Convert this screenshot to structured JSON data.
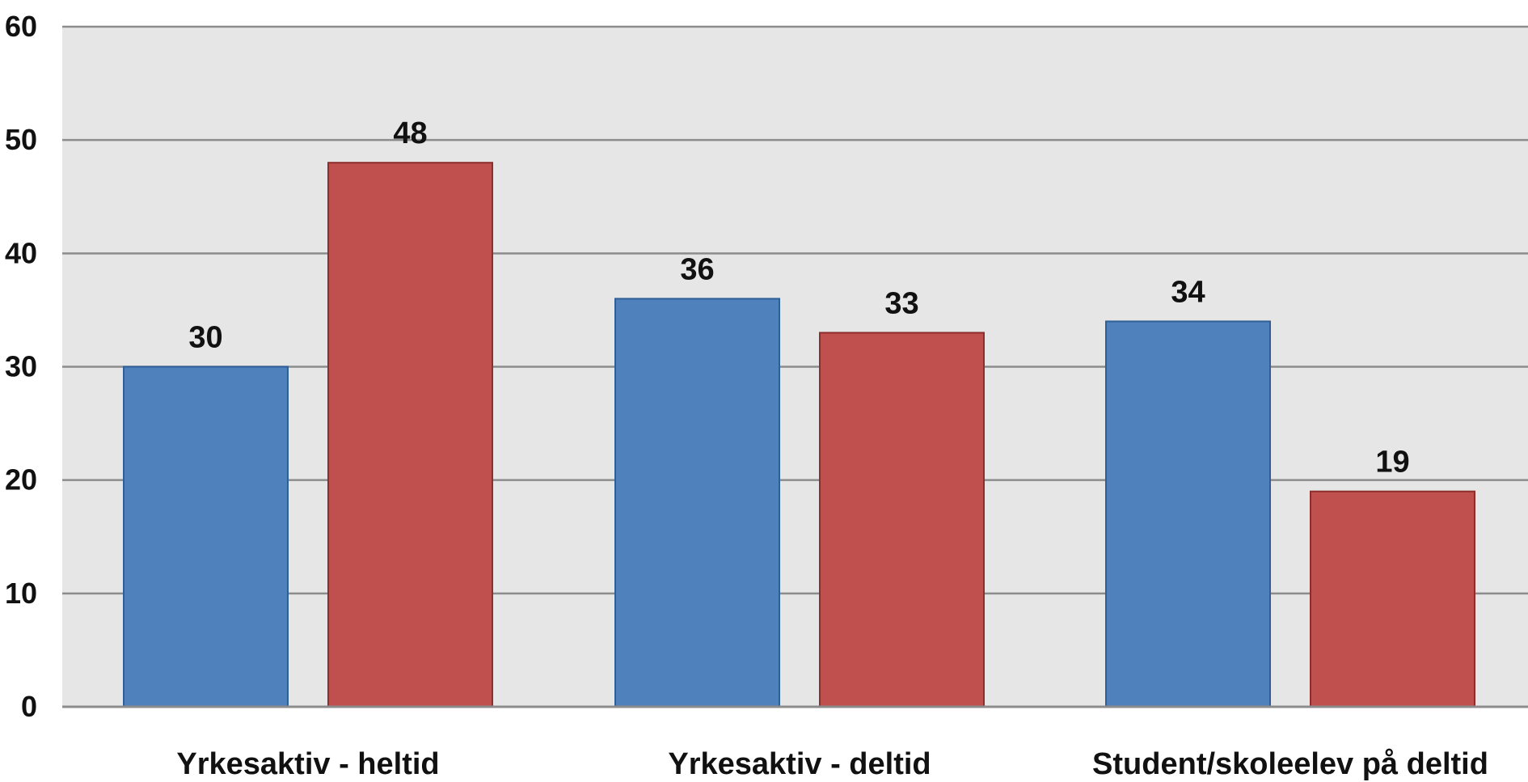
{
  "chart_data": {
    "type": "bar",
    "categories": [
      "Yrkesaktiv - heltid",
      "Yrkesaktiv - deltid",
      "Student/skoleelev på deltid"
    ],
    "series": [
      {
        "values": [
          30,
          36,
          34
        ],
        "color": "#4F81BD",
        "stroke": "#2F5F96"
      },
      {
        "values": [
          48,
          33,
          19
        ],
        "color": "#C0504D",
        "stroke": "#8C2F2C"
      }
    ],
    "ylim": [
      0,
      60
    ],
    "yticks": [
      "0",
      "10",
      "20",
      "30",
      "40",
      "50",
      "60"
    ],
    "grid": true,
    "plot_background": "#E6E6E6",
    "gridline_color": "#8C8C8C",
    "data_labels": true
  }
}
